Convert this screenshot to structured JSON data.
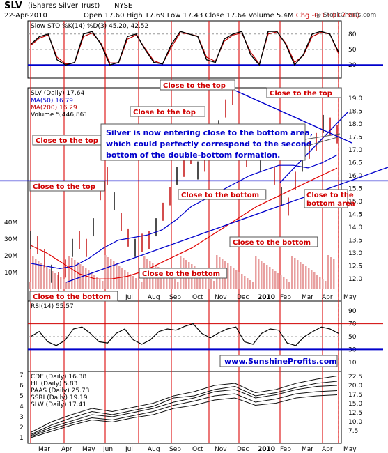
{
  "header": {
    "ticker": "SLV",
    "name": "(iShares Silver Trust)",
    "exchange": "NYSE",
    "date": "22-Apr-2010",
    "open": "Open 17.60",
    "high": "High 17.69",
    "low": "Low 17.43",
    "close": "Close 17.64",
    "volume": "Volume 5.4M",
    "chg": "Chg -0.13 (0.73%)",
    "credit": "@ StockCharts.com"
  },
  "colors": {
    "red": "#d00000",
    "blue": "#0000cc",
    "price_down": "#c00000",
    "price_up": "#000000",
    "volume": "#e8a0a0",
    "sto_fill": "#7a8f6b"
  },
  "annotations": {
    "center_note": "Silver is now entering close to the bottom area, which could perfectly correspond to the second bottom of the double-bottom formation.",
    "website": "www.SunshineProfits.com",
    "boxes": [
      "Close to the top",
      "Close to the top",
      "Close to the top",
      "Close to the top",
      "Close to the top",
      "Close to the bottom",
      "Close to the bottom",
      "Close to the bottom",
      "Close to the bottom",
      "Close to the bottom area"
    ]
  },
  "chart_data": [
    {
      "type": "line",
      "panel": "stochastic",
      "title": "Slow STO %K(14) %D(3) 45.20, 42.52",
      "ylim": [
        0,
        100
      ],
      "yticks": [
        "80",
        "50",
        "20"
      ],
      "series": [
        {
          "name": "%K",
          "values": [
            60,
            75,
            80,
            30,
            20,
            25,
            80,
            85,
            60,
            20,
            25,
            75,
            80,
            50,
            25,
            22,
            60,
            85,
            80,
            75,
            30,
            25,
            70,
            80,
            85,
            40,
            20,
            85,
            85,
            60,
            20,
            40,
            80,
            85,
            80,
            45
          ]
        },
        {
          "name": "%D",
          "values": [
            58,
            72,
            78,
            35,
            22,
            24,
            75,
            82,
            62,
            24,
            24,
            70,
            78,
            52,
            28,
            22,
            55,
            82,
            80,
            76,
            35,
            27,
            66,
            78,
            82,
            45,
            22,
            80,
            84,
            62,
            25,
            38,
            75,
            83,
            80,
            42
          ]
        }
      ]
    },
    {
      "type": "line",
      "panel": "price",
      "title": "SLV (Daily) 17.64",
      "legend": [
        "MA(50) 16.79",
        "MA(200) 16.29",
        "Volume 5,446,861"
      ],
      "x_ticks": [
        "Mar",
        "Apr",
        "May",
        "Jun",
        "Jul",
        "Aug",
        "Sep",
        "Oct",
        "Nov",
        "Dec",
        "2010",
        "Feb",
        "Mar",
        "Apr",
        "May"
      ],
      "yticks": [
        "19.0",
        "18.5",
        "18.0",
        "17.5",
        "17.0",
        "16.5",
        "16.0",
        "15.5",
        "15.0",
        "14.5",
        "14.0",
        "13.5",
        "13.0",
        "12.5",
        "12.0"
      ],
      "volume_ticks": [
        "40M",
        "30M",
        "20M",
        "10M"
      ],
      "ylim": [
        11.6,
        19.4
      ],
      "series": [
        {
          "name": "SLV",
          "values": [
            13.5,
            13.3,
            12.8,
            12.2,
            11.9,
            12.4,
            13.2,
            13.5,
            13.2,
            14.0,
            15.4,
            16.0,
            15.0,
            14.2,
            13.6,
            13.2,
            13.4,
            13.5,
            14.0,
            14.6,
            15.2,
            16.0,
            16.3,
            16.8,
            16.2,
            16.5,
            17.0,
            17.8,
            18.6,
            19.1,
            17.5,
            16.7,
            17.2,
            16.5,
            17.0,
            16.0,
            15.2,
            14.8,
            15.8,
            16.5,
            17.0,
            17.3,
            18.0,
            17.9,
            17.6
          ]
        },
        {
          "name": "MA(50)",
          "values": [
            12.6,
            12.5,
            12.4,
            12.5,
            12.8,
            13.2,
            13.5,
            13.6,
            13.7,
            13.9,
            14.3,
            14.8,
            15.1,
            15.4,
            15.7,
            16.0,
            16.2,
            16.4,
            16.4,
            16.3,
            16.5,
            16.8
          ]
        },
        {
          "name": "MA(200)",
          "values": [
            13.3,
            13.0,
            12.6,
            12.2,
            12.0,
            12.0,
            12.1,
            12.3,
            12.6,
            12.9,
            13.2,
            13.6,
            14.0,
            14.4,
            14.8,
            15.1,
            15.4,
            15.7,
            16.0,
            16.29
          ]
        }
      ]
    },
    {
      "type": "line",
      "panel": "rsi",
      "title": "RSI(14) 55.57",
      "ylim": [
        0,
        100
      ],
      "yticks": [
        "90",
        "70",
        "50",
        "30",
        "10"
      ],
      "series": [
        {
          "name": "RSI",
          "values": [
            50,
            58,
            42,
            36,
            44,
            62,
            65,
            55,
            42,
            40,
            55,
            62,
            45,
            38,
            45,
            58,
            62,
            60,
            66,
            70,
            55,
            48,
            56,
            62,
            65,
            42,
            38,
            55,
            62,
            60,
            40,
            36,
            50,
            58,
            65,
            62,
            55
          ]
        }
      ]
    },
    {
      "type": "line",
      "panel": "stocks",
      "legend": [
        "CDE (Daily) 16.38",
        "HL (Daily) 5.83",
        "PAAS (Daily) 25.73",
        "SSRI (Daily) 19.19",
        "SLW (Daily) 17.41"
      ],
      "left_ticks": [
        "7",
        "6",
        "5",
        "4",
        "3",
        "2",
        "1"
      ],
      "right_ticks": [
        "22.5",
        "20.0",
        "17.5",
        "15.0",
        "12.5",
        "10.0",
        "7.5"
      ],
      "x_ticks": [
        "Mar",
        "Apr",
        "May",
        "Jun",
        "Jul",
        "Aug",
        "Sep",
        "Oct",
        "Nov",
        "Dec",
        "2010",
        "Feb",
        "Mar",
        "Apr",
        "May"
      ],
      "series": [
        {
          "name": "CDE",
          "values": [
            1.5,
            2.5,
            3.2,
            3.8,
            3.5,
            3.9,
            4.3,
            5.0,
            5.4,
            6.0,
            6.2,
            5.3,
            5.6,
            6.2,
            6.6,
            6.9
          ]
        },
        {
          "name": "HL",
          "values": [
            1.3,
            2.2,
            2.9,
            3.5,
            3.2,
            3.6,
            4.0,
            4.8,
            5.0,
            5.6,
            5.9,
            5.0,
            5.3,
            5.8,
            6.2,
            6.4
          ]
        },
        {
          "name": "PAAS",
          "values": [
            1.2,
            2.0,
            2.6,
            3.2,
            3.0,
            3.4,
            3.8,
            4.4,
            4.8,
            5.4,
            5.6,
            4.8,
            5.1,
            5.6,
            5.9,
            6.0
          ]
        },
        {
          "name": "SSRI",
          "values": [
            1.1,
            1.8,
            2.4,
            2.9,
            2.7,
            3.1,
            3.5,
            4.1,
            4.5,
            5.0,
            5.2,
            4.4,
            4.7,
            5.2,
            5.4,
            5.5
          ]
        },
        {
          "name": "SLW",
          "values": [
            1.0,
            1.6,
            2.2,
            2.7,
            2.5,
            2.9,
            3.2,
            3.8,
            4.1,
            4.6,
            4.8,
            4.1,
            4.3,
            4.8,
            5.0,
            5.1
          ]
        }
      ]
    }
  ]
}
